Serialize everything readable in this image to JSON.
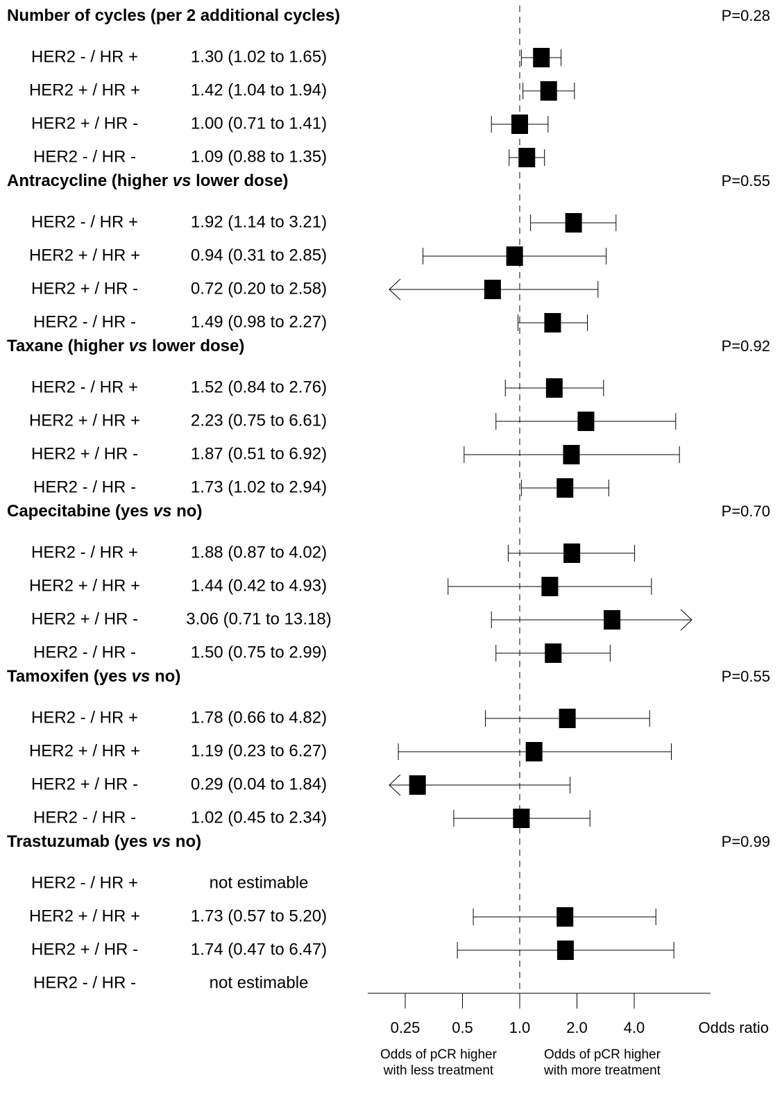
{
  "chart_data": {
    "type": "forest",
    "xscale": "log2",
    "xlabel": "Odds ratio",
    "xticks": [
      {
        "value": 0.25,
        "label": "0.25"
      },
      {
        "value": 0.5,
        "label": "0.5"
      },
      {
        "value": 1.0,
        "label": "1.0"
      },
      {
        "value": 2.0,
        "label": "2.0"
      },
      {
        "value": 4.0,
        "label": "4.0"
      }
    ],
    "reference_line": 1.0,
    "direction_labels": {
      "left": [
        "Odds of pCR higher",
        "with less treatment"
      ],
      "right": [
        "Odds of pCR higher",
        "with more treatment"
      ]
    },
    "groups": [
      {
        "title": "Number of cycles (per 2 additional cycles)",
        "title_parts": [
          {
            "text": "Number of cycles (per 2 additional cycles)",
            "italic": false
          }
        ],
        "p_value": "P=0.28",
        "rows": [
          {
            "subgroup": "HER2 - / HR +",
            "estimate_text": "1.30 (1.02 to 1.65)",
            "or": 1.3,
            "lower": 1.02,
            "upper": 1.65
          },
          {
            "subgroup": "HER2 + / HR +",
            "estimate_text": "1.42 (1.04 to 1.94)",
            "or": 1.42,
            "lower": 1.04,
            "upper": 1.94
          },
          {
            "subgroup": "HER2 + / HR -",
            "estimate_text": "1.00 (0.71 to 1.41)",
            "or": 1.0,
            "lower": 0.71,
            "upper": 1.41
          },
          {
            "subgroup": "HER2 - / HR -",
            "estimate_text": "1.09 (0.88 to 1.35)",
            "or": 1.09,
            "lower": 0.88,
            "upper": 1.35
          }
        ]
      },
      {
        "title": "Antracycline (higher vs lower dose)",
        "title_parts": [
          {
            "text": "Antracycline (higher ",
            "italic": false
          },
          {
            "text": "vs",
            "italic": true
          },
          {
            "text": " lower dose)",
            "italic": false
          }
        ],
        "p_value": "P=0.55",
        "rows": [
          {
            "subgroup": "HER2 - / HR +",
            "estimate_text": "1.92 (1.14 to 3.21)",
            "or": 1.92,
            "lower": 1.14,
            "upper": 3.21
          },
          {
            "subgroup": "HER2 + / HR +",
            "estimate_text": "0.94 (0.31 to 2.85)",
            "or": 0.94,
            "lower": 0.31,
            "upper": 2.85
          },
          {
            "subgroup": "HER2 + / HR -",
            "estimate_text": "0.72 (0.20 to 2.58)",
            "or": 0.72,
            "lower": 0.2,
            "upper": 2.58
          },
          {
            "subgroup": "HER2 - / HR -",
            "estimate_text": "1.49 (0.98 to 2.27)",
            "or": 1.49,
            "lower": 0.98,
            "upper": 2.27
          }
        ]
      },
      {
        "title": "Taxane (higher vs lower dose)",
        "title_parts": [
          {
            "text": "Taxane (higher ",
            "italic": false
          },
          {
            "text": "vs",
            "italic": true
          },
          {
            "text": " lower dose)",
            "italic": false
          }
        ],
        "p_value": "P=0.92",
        "rows": [
          {
            "subgroup": "HER2 - / HR +",
            "estimate_text": "1.52 (0.84 to 2.76)",
            "or": 1.52,
            "lower": 0.84,
            "upper": 2.76
          },
          {
            "subgroup": "HER2 + / HR +",
            "estimate_text": "2.23 (0.75 to 6.61)",
            "or": 2.23,
            "lower": 0.75,
            "upper": 6.61
          },
          {
            "subgroup": "HER2 + / HR -",
            "estimate_text": "1.87 (0.51 to 6.92)",
            "or": 1.87,
            "lower": 0.51,
            "upper": 6.92
          },
          {
            "subgroup": "HER2 - / HR -",
            "estimate_text": "1.73 (1.02 to 2.94)",
            "or": 1.73,
            "lower": 1.02,
            "upper": 2.94
          }
        ]
      },
      {
        "title": "Capecitabine (yes vs no)",
        "title_parts": [
          {
            "text": "Capecitabine (yes ",
            "italic": false
          },
          {
            "text": "vs",
            "italic": true
          },
          {
            "text": " no)",
            "italic": false
          }
        ],
        "p_value": "P=0.70",
        "rows": [
          {
            "subgroup": "HER2 - / HR +",
            "estimate_text": "1.88 (0.87 to 4.02)",
            "or": 1.88,
            "lower": 0.87,
            "upper": 4.02
          },
          {
            "subgroup": "HER2 + / HR +",
            "estimate_text": "1.44 (0.42 to 4.93)",
            "or": 1.44,
            "lower": 0.42,
            "upper": 4.93
          },
          {
            "subgroup": "HER2 + / HR -",
            "estimate_text": "3.06 (0.71 to 13.18)",
            "or": 3.06,
            "lower": 0.71,
            "upper": 13.18
          },
          {
            "subgroup": "HER2 - / HR -",
            "estimate_text": "1.50 (0.75 to 2.99)",
            "or": 1.5,
            "lower": 0.75,
            "upper": 2.99
          }
        ]
      },
      {
        "title": "Tamoxifen (yes vs no)",
        "title_parts": [
          {
            "text": "Tamoxifen (yes ",
            "italic": false
          },
          {
            "text": "vs",
            "italic": true
          },
          {
            "text": " no)",
            "italic": false
          }
        ],
        "p_value": "P=0.55",
        "rows": [
          {
            "subgroup": "HER2 - / HR +",
            "estimate_text": "1.78 (0.66 to 4.82)",
            "or": 1.78,
            "lower": 0.66,
            "upper": 4.82
          },
          {
            "subgroup": "HER2 + / HR +",
            "estimate_text": "1.19 (0.23 to 6.27)",
            "or": 1.19,
            "lower": 0.23,
            "upper": 6.27
          },
          {
            "subgroup": "HER2 + / HR -",
            "estimate_text": "0.29 (0.04 to 1.84)",
            "or": 0.29,
            "lower": 0.04,
            "upper": 1.84
          },
          {
            "subgroup": "HER2 - / HR -",
            "estimate_text": "1.02 (0.45 to 2.34)",
            "or": 1.02,
            "lower": 0.45,
            "upper": 2.34
          }
        ]
      },
      {
        "title": "Trastuzumab (yes vs no)",
        "title_parts": [
          {
            "text": "Trastuzumab (yes ",
            "italic": false
          },
          {
            "text": "vs",
            "italic": true
          },
          {
            "text": " no)",
            "italic": false
          }
        ],
        "p_value": "P=0.99",
        "rows": [
          {
            "subgroup": "HER2 - / HR +",
            "estimate_text": "not estimable",
            "or": null,
            "lower": null,
            "upper": null
          },
          {
            "subgroup": "HER2 + / HR +",
            "estimate_text": "1.73 (0.57 to 5.20)",
            "or": 1.73,
            "lower": 0.57,
            "upper": 5.2
          },
          {
            "subgroup": "HER2 + / HR -",
            "estimate_text": "1.74 (0.47 to 6.47)",
            "or": 1.74,
            "lower": 0.47,
            "upper": 6.47
          },
          {
            "subgroup": "HER2 - / HR -",
            "estimate_text": "not estimable",
            "or": null,
            "lower": null,
            "upper": null
          }
        ]
      }
    ]
  }
}
